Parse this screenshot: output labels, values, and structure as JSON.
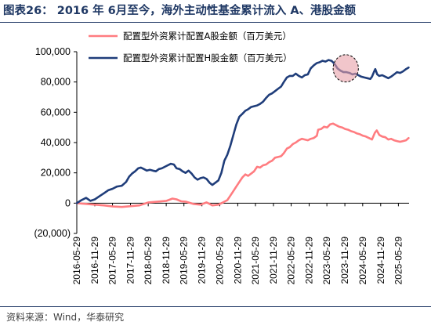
{
  "title": "图表26：  2016 年 6月至今，海外主动性基金累计流入 A、港股金额",
  "source": "资料来源：Wind，华泰研究",
  "chart_data": {
    "type": "line",
    "ylim": [
      -20000,
      100000
    ],
    "yticks": [
      -20000,
      0,
      20000,
      40000,
      60000,
      80000,
      100000
    ],
    "ytick_labels": [
      "(20,000)",
      "0",
      "20,000",
      "40,000",
      "60,000",
      "80,000",
      "100,000"
    ],
    "xlim": [
      "2016-05-29",
      "2025-09-15"
    ],
    "xtick_labels": [
      "2016-05-29",
      "2016-11-29",
      "2017-05-29",
      "2017-11-29",
      "2018-05-29",
      "2018-11-29",
      "2019-05-29",
      "2019-11-29",
      "2020-05-29",
      "2020-11-29",
      "2021-05-29",
      "2021-11-29",
      "2022-05-29",
      "2022-11-29",
      "2023-05-29",
      "2023-11-29",
      "2024-05-29",
      "2024-11-29",
      "2025-05-29"
    ],
    "grid": false,
    "legend_position": "top",
    "highlight_ellipse": {
      "x_range": [
        "2023-08-01",
        "2024-04-15"
      ],
      "y_range": [
        80000,
        98000
      ],
      "color": "#e8a0a8"
    },
    "series": [
      {
        "name": "配置型外资累计配置A股金额（百万美元）",
        "color": "#ff7c80",
        "points": [
          [
            "2016-05-29",
            0
          ],
          [
            "2016-09-01",
            -500
          ],
          [
            "2016-12-01",
            -1000
          ],
          [
            "2017-03-01",
            -1500
          ],
          [
            "2017-06-01",
            -2200
          ],
          [
            "2017-09-01",
            -2500
          ],
          [
            "2017-12-01",
            -2000
          ],
          [
            "2018-03-01",
            -1500
          ],
          [
            "2018-06-01",
            500
          ],
          [
            "2018-09-01",
            1000
          ],
          [
            "2018-12-01",
            1500
          ],
          [
            "2019-02-01",
            3000
          ],
          [
            "2019-03-15",
            2500
          ],
          [
            "2019-05-01",
            1200
          ],
          [
            "2019-06-15",
            1000
          ],
          [
            "2019-09-01",
            -500
          ],
          [
            "2019-11-15",
            -1000
          ],
          [
            "2020-01-15",
            500
          ],
          [
            "2020-03-15",
            -1500
          ],
          [
            "2020-05-15",
            -1000
          ],
          [
            "2020-07-01",
            500
          ],
          [
            "2020-08-15",
            2000
          ],
          [
            "2020-09-15",
            5000
          ],
          [
            "2020-10-15",
            8000
          ],
          [
            "2020-11-15",
            11000
          ],
          [
            "2020-12-15",
            14000
          ],
          [
            "2021-01-15",
            17000
          ],
          [
            "2021-02-15",
            19000
          ],
          [
            "2021-03-15",
            18000
          ],
          [
            "2021-04-15",
            19500
          ],
          [
            "2021-05-15",
            21000
          ],
          [
            "2021-06-15",
            24000
          ],
          [
            "2021-07-15",
            23500
          ],
          [
            "2021-08-15",
            25000
          ],
          [
            "2021-09-15",
            25500
          ],
          [
            "2021-10-15",
            27000
          ],
          [
            "2021-11-15",
            28000
          ],
          [
            "2021-12-15",
            30000
          ],
          [
            "2022-01-15",
            30500
          ],
          [
            "2022-02-15",
            31000
          ],
          [
            "2022-03-15",
            33000
          ],
          [
            "2022-04-15",
            36000
          ],
          [
            "2022-05-15",
            37000
          ],
          [
            "2022-06-15",
            39000
          ],
          [
            "2022-07-15",
            40000
          ],
          [
            "2022-08-15",
            41500
          ],
          [
            "2022-09-15",
            42500
          ],
          [
            "2022-10-15",
            42000
          ],
          [
            "2022-11-15",
            41500
          ],
          [
            "2022-12-15",
            42500
          ],
          [
            "2023-01-15",
            43000
          ],
          [
            "2023-02-15",
            44500
          ],
          [
            "2023-03-01",
            48500
          ],
          [
            "2023-04-01",
            49000
          ],
          [
            "2023-05-01",
            50500
          ],
          [
            "2023-06-01",
            50000
          ],
          [
            "2023-07-01",
            52000
          ],
          [
            "2023-08-01",
            52500
          ],
          [
            "2023-09-01",
            51500
          ],
          [
            "2023-10-01",
            50500
          ],
          [
            "2023-11-01",
            50000
          ],
          [
            "2023-12-01",
            49000
          ],
          [
            "2024-01-01",
            48500
          ],
          [
            "2024-02-01",
            47500
          ],
          [
            "2024-03-01",
            47000
          ],
          [
            "2024-04-01",
            46000
          ],
          [
            "2024-05-01",
            45500
          ],
          [
            "2024-06-01",
            44500
          ],
          [
            "2024-07-01",
            44000
          ],
          [
            "2024-08-01",
            43000
          ],
          [
            "2024-09-01",
            42000
          ],
          [
            "2024-10-01",
            46500
          ],
          [
            "2024-10-20",
            48000
          ],
          [
            "2024-11-15",
            45000
          ],
          [
            "2024-12-15",
            44000
          ],
          [
            "2025-01-15",
            43500
          ],
          [
            "2025-02-15",
            42000
          ],
          [
            "2025-03-15",
            42500
          ],
          [
            "2025-04-15",
            41500
          ],
          [
            "2025-05-15",
            41000
          ],
          [
            "2025-06-15",
            40500
          ],
          [
            "2025-07-15",
            41000
          ],
          [
            "2025-08-15",
            41500
          ],
          [
            "2025-09-10",
            43000
          ]
        ]
      },
      {
        "name": "配置型外资累计配置H股金额（百万美元）",
        "color": "#1f3d7a",
        "points": [
          [
            "2016-05-29",
            0
          ],
          [
            "2016-07-15",
            2000
          ],
          [
            "2016-09-01",
            3500
          ],
          [
            "2016-10-15",
            1500
          ],
          [
            "2016-11-29",
            2500
          ],
          [
            "2017-01-15",
            4500
          ],
          [
            "2017-03-01",
            6500
          ],
          [
            "2017-04-15",
            8500
          ],
          [
            "2017-05-29",
            9500
          ],
          [
            "2017-07-15",
            11000
          ],
          [
            "2017-09-01",
            11500
          ],
          [
            "2017-10-15",
            14000
          ],
          [
            "2017-11-15",
            17500
          ],
          [
            "2017-12-15",
            19500
          ],
          [
            "2018-01-15",
            21000
          ],
          [
            "2018-02-15",
            23000
          ],
          [
            "2018-03-15",
            23500
          ],
          [
            "2018-04-15",
            22500
          ],
          [
            "2018-05-15",
            21500
          ],
          [
            "2018-06-15",
            22000
          ],
          [
            "2018-07-15",
            21500
          ],
          [
            "2018-08-15",
            21000
          ],
          [
            "2018-09-15",
            22500
          ],
          [
            "2018-10-15",
            23000
          ],
          [
            "2018-11-15",
            24000
          ],
          [
            "2018-12-15",
            25000
          ],
          [
            "2019-01-15",
            26000
          ],
          [
            "2019-02-15",
            25500
          ],
          [
            "2019-03-15",
            23000
          ],
          [
            "2019-04-15",
            22500
          ],
          [
            "2019-05-15",
            21000
          ],
          [
            "2019-06-15",
            20000
          ],
          [
            "2019-07-15",
            21500
          ],
          [
            "2019-08-15",
            19500
          ],
          [
            "2019-09-15",
            17000
          ],
          [
            "2019-10-15",
            15500
          ],
          [
            "2019-11-15",
            16500
          ],
          [
            "2019-12-15",
            17000
          ],
          [
            "2020-01-15",
            16000
          ],
          [
            "2020-02-15",
            13500
          ],
          [
            "2020-03-15",
            12000
          ],
          [
            "2020-04-15",
            13500
          ],
          [
            "2020-05-15",
            15000
          ],
          [
            "2020-06-15",
            20000
          ],
          [
            "2020-07-15",
            28000
          ],
          [
            "2020-08-15",
            32000
          ],
          [
            "2020-09-15",
            38000
          ],
          [
            "2020-10-15",
            45000
          ],
          [
            "2020-11-15",
            52000
          ],
          [
            "2020-12-15",
            57000
          ],
          [
            "2021-01-15",
            59000
          ],
          [
            "2021-02-15",
            61000
          ],
          [
            "2021-03-15",
            62000
          ],
          [
            "2021-04-15",
            63500
          ],
          [
            "2021-05-15",
            64000
          ],
          [
            "2021-06-15",
            64500
          ],
          [
            "2021-07-15",
            65500
          ],
          [
            "2021-08-15",
            67000
          ],
          [
            "2021-09-15",
            69500
          ],
          [
            "2021-10-15",
            71500
          ],
          [
            "2021-11-15",
            72500
          ],
          [
            "2021-12-15",
            74000
          ],
          [
            "2022-01-15",
            75500
          ],
          [
            "2022-02-15",
            77000
          ],
          [
            "2022-03-15",
            80000
          ],
          [
            "2022-04-15",
            83000
          ],
          [
            "2022-05-15",
            84000
          ],
          [
            "2022-06-15",
            84000
          ],
          [
            "2022-07-15",
            85500
          ],
          [
            "2022-08-15",
            84000
          ],
          [
            "2022-09-15",
            83000
          ],
          [
            "2022-10-15",
            84500
          ],
          [
            "2022-11-15",
            85000
          ],
          [
            "2022-12-15",
            89000
          ],
          [
            "2023-01-15",
            91000
          ],
          [
            "2023-02-15",
            92500
          ],
          [
            "2023-03-15",
            93000
          ],
          [
            "2023-04-15",
            94000
          ],
          [
            "2023-05-15",
            93500
          ],
          [
            "2023-06-15",
            94500
          ],
          [
            "2023-07-15",
            94000
          ],
          [
            "2023-08-15",
            92000
          ],
          [
            "2023-09-15",
            89000
          ],
          [
            "2023-10-15",
            87500
          ],
          [
            "2023-11-15",
            86500
          ],
          [
            "2023-12-15",
            86500
          ],
          [
            "2024-01-15",
            86000
          ],
          [
            "2024-02-15",
            85000
          ],
          [
            "2024-03-15",
            85500
          ],
          [
            "2024-04-15",
            84500
          ],
          [
            "2024-05-15",
            83500
          ],
          [
            "2024-06-15",
            83000
          ],
          [
            "2024-07-15",
            82500
          ],
          [
            "2024-08-15",
            82000
          ],
          [
            "2024-09-01",
            83500
          ],
          [
            "2024-09-20",
            86500
          ],
          [
            "2024-10-05",
            88500
          ],
          [
            "2024-10-25",
            85000
          ],
          [
            "2024-11-15",
            84000
          ],
          [
            "2024-12-15",
            84500
          ],
          [
            "2025-01-15",
            83500
          ],
          [
            "2025-02-15",
            82500
          ],
          [
            "2025-03-15",
            83500
          ],
          [
            "2025-04-15",
            85000
          ],
          [
            "2025-05-15",
            86500
          ],
          [
            "2025-06-15",
            86000
          ],
          [
            "2025-07-15",
            87000
          ],
          [
            "2025-08-15",
            88500
          ],
          [
            "2025-09-10",
            89500
          ]
        ]
      }
    ]
  }
}
